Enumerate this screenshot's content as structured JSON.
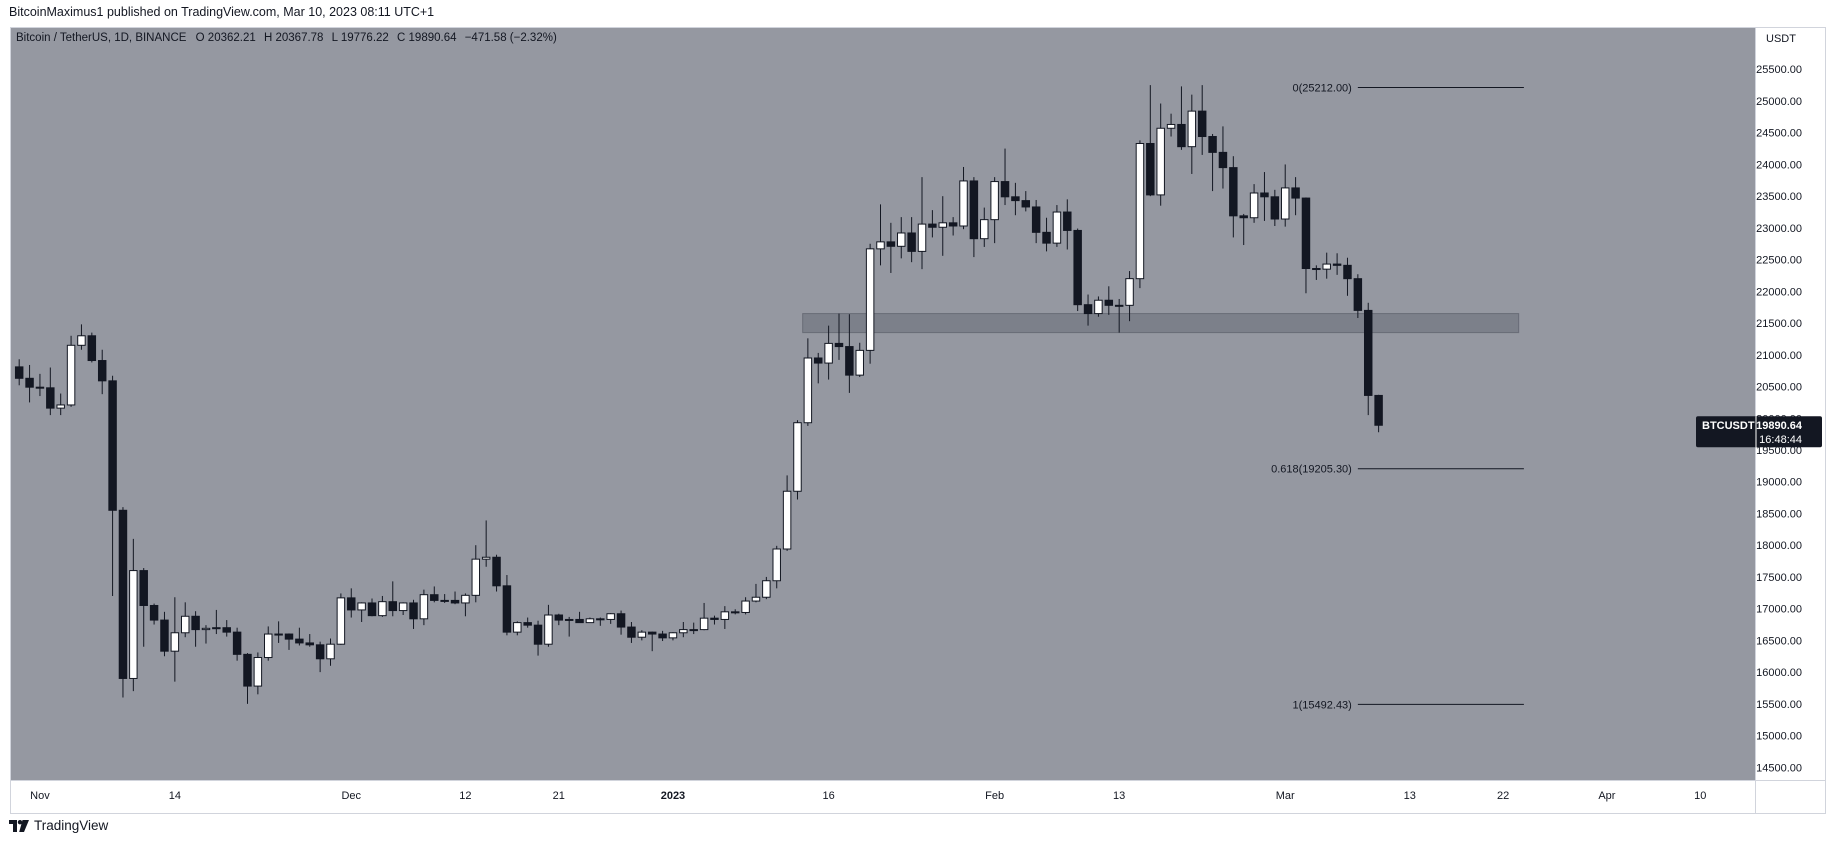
{
  "header": {
    "publisher": "BitcoinMaximus1",
    "published_text": "published on TradingView.com, Mar 10, 2023 08:11 UTC+1"
  },
  "footer": {
    "brand": "TradingView",
    "logo_icon": "tradingview-logo-icon"
  },
  "colors": {
    "plot_bg": "#9598a1",
    "up_body": "#ffffff",
    "down_body": "#131722",
    "wick": "#131722",
    "zone": "#787b86",
    "price_tag_bg": "#131722",
    "price_tag_text": "#ffffff"
  },
  "legend": {
    "symbol": "Bitcoin / TetherUS, 1D, BINANCE",
    "open_label": "O",
    "open": "20362.21",
    "high_label": "H",
    "high": "20367.78",
    "low_label": "L",
    "low": "19776.22",
    "close_label": "C",
    "close": "19890.64",
    "change": "−471.58 (−2.32%)"
  },
  "price_tag": {
    "symbol": "BTCUSDT",
    "price": "19890.64",
    "countdown": "16:48:44"
  },
  "chart_data": {
    "type": "candlestick",
    "symbol": "BTCUSDT",
    "interval": "1D",
    "exchange": "BINANCE",
    "y_axis_unit": "USDT",
    "ylim": [
      14300,
      26150
    ],
    "xlim": [
      "2022-10-30",
      "2023-04-15"
    ],
    "grid": false,
    "y_ticks": [
      "25500.00",
      "25000.00",
      "24500.00",
      "24000.00",
      "23500.00",
      "23000.00",
      "22500.00",
      "22000.00",
      "21500.00",
      "21000.00",
      "20500.00",
      "20000.00",
      "19500.00",
      "19000.00",
      "18500.00",
      "18000.00",
      "17500.00",
      "17000.00",
      "16500.00",
      "16000.00",
      "15500.00",
      "15000.00",
      "14500.00"
    ],
    "x_ticks": [
      {
        "label": "Nov",
        "date": "2022-11-01"
      },
      {
        "label": "14",
        "date": "2022-11-14"
      },
      {
        "label": "Dec",
        "date": "2022-12-01"
      },
      {
        "label": "12",
        "date": "2022-12-12"
      },
      {
        "label": "21",
        "date": "2022-12-21"
      },
      {
        "label": "2023",
        "date": "2023-01-01"
      },
      {
        "label": "16",
        "date": "2023-01-16"
      },
      {
        "label": "Feb",
        "date": "2023-02-01"
      },
      {
        "label": "13",
        "date": "2023-02-13"
      },
      {
        "label": "Mar",
        "date": "2023-03-01"
      },
      {
        "label": "13",
        "date": "2023-03-13"
      },
      {
        "label": "22",
        "date": "2023-03-22"
      },
      {
        "label": "Apr",
        "date": "2023-04-01"
      },
      {
        "label": "10",
        "date": "2023-04-10"
      }
    ],
    "candles": [
      {
        "date": "2022-10-30",
        "o": 20810,
        "h": 20930,
        "l": 20520,
        "c": 20630
      },
      {
        "date": "2022-10-31",
        "o": 20630,
        "h": 20840,
        "l": 20250,
        "c": 20490
      },
      {
        "date": "2022-11-01",
        "o": 20490,
        "h": 20700,
        "l": 20350,
        "c": 20480
      },
      {
        "date": "2022-11-02",
        "o": 20480,
        "h": 20800,
        "l": 20050,
        "c": 20160
      },
      {
        "date": "2022-11-03",
        "o": 20160,
        "h": 20390,
        "l": 20050,
        "c": 20210
      },
      {
        "date": "2022-11-04",
        "o": 20210,
        "h": 21300,
        "l": 20180,
        "c": 21150
      },
      {
        "date": "2022-11-05",
        "o": 21150,
        "h": 21480,
        "l": 21080,
        "c": 21300
      },
      {
        "date": "2022-11-06",
        "o": 21300,
        "h": 21350,
        "l": 20880,
        "c": 20910
      },
      {
        "date": "2022-11-07",
        "o": 20910,
        "h": 21080,
        "l": 20380,
        "c": 20590
      },
      {
        "date": "2022-11-08",
        "o": 20590,
        "h": 20670,
        "l": 17200,
        "c": 18550
      },
      {
        "date": "2022-11-09",
        "o": 18550,
        "h": 18600,
        "l": 15600,
        "c": 15900
      },
      {
        "date": "2022-11-10",
        "o": 15900,
        "h": 18100,
        "l": 15700,
        "c": 17600
      },
      {
        "date": "2022-11-11",
        "o": 17600,
        "h": 17640,
        "l": 16400,
        "c": 17050
      },
      {
        "date": "2022-11-12",
        "o": 17050,
        "h": 17080,
        "l": 16750,
        "c": 16820
      },
      {
        "date": "2022-11-13",
        "o": 16820,
        "h": 16950,
        "l": 16250,
        "c": 16330
      },
      {
        "date": "2022-11-14",
        "o": 16330,
        "h": 17180,
        "l": 15850,
        "c": 16620
      },
      {
        "date": "2022-11-15",
        "o": 16620,
        "h": 17100,
        "l": 16550,
        "c": 16880
      },
      {
        "date": "2022-11-16",
        "o": 16880,
        "h": 16960,
        "l": 16400,
        "c": 16670
      },
      {
        "date": "2022-11-17",
        "o": 16670,
        "h": 16740,
        "l": 16450,
        "c": 16690
      },
      {
        "date": "2022-11-18",
        "o": 16690,
        "h": 16980,
        "l": 16600,
        "c": 16700
      },
      {
        "date": "2022-11-19",
        "o": 16700,
        "h": 16820,
        "l": 16560,
        "c": 16630
      },
      {
        "date": "2022-11-20",
        "o": 16630,
        "h": 16700,
        "l": 16180,
        "c": 16280
      },
      {
        "date": "2022-11-21",
        "o": 16280,
        "h": 16300,
        "l": 15500,
        "c": 15780
      },
      {
        "date": "2022-11-22",
        "o": 15780,
        "h": 16310,
        "l": 15650,
        "c": 16230
      },
      {
        "date": "2022-11-23",
        "o": 16230,
        "h": 16720,
        "l": 16180,
        "c": 16600
      },
      {
        "date": "2022-11-24",
        "o": 16600,
        "h": 16800,
        "l": 16460,
        "c": 16600
      },
      {
        "date": "2022-11-25",
        "o": 16600,
        "h": 16610,
        "l": 16350,
        "c": 16520
      },
      {
        "date": "2022-11-26",
        "o": 16520,
        "h": 16700,
        "l": 16420,
        "c": 16460
      },
      {
        "date": "2022-11-27",
        "o": 16460,
        "h": 16600,
        "l": 16400,
        "c": 16430
      },
      {
        "date": "2022-11-28",
        "o": 16430,
        "h": 16480,
        "l": 16000,
        "c": 16210
      },
      {
        "date": "2022-11-29",
        "o": 16210,
        "h": 16530,
        "l": 16100,
        "c": 16440
      },
      {
        "date": "2022-11-30",
        "o": 16440,
        "h": 17240,
        "l": 16430,
        "c": 17170
      },
      {
        "date": "2022-12-01",
        "o": 17170,
        "h": 17320,
        "l": 16860,
        "c": 16980
      },
      {
        "date": "2022-12-02",
        "o": 16980,
        "h": 17100,
        "l": 16790,
        "c": 17090
      },
      {
        "date": "2022-12-03",
        "o": 17090,
        "h": 17160,
        "l": 16880,
        "c": 16890
      },
      {
        "date": "2022-12-04",
        "o": 16890,
        "h": 17200,
        "l": 16870,
        "c": 17110
      },
      {
        "date": "2022-12-05",
        "o": 17110,
        "h": 17430,
        "l": 16880,
        "c": 16970
      },
      {
        "date": "2022-12-06",
        "o": 16970,
        "h": 17100,
        "l": 16900,
        "c": 17090
      },
      {
        "date": "2022-12-07",
        "o": 17090,
        "h": 17140,
        "l": 16680,
        "c": 16840
      },
      {
        "date": "2022-12-08",
        "o": 16840,
        "h": 17300,
        "l": 16740,
        "c": 17220
      },
      {
        "date": "2022-12-09",
        "o": 17220,
        "h": 17350,
        "l": 17100,
        "c": 17130
      },
      {
        "date": "2022-12-10",
        "o": 17130,
        "h": 17230,
        "l": 17090,
        "c": 17130
      },
      {
        "date": "2022-12-11",
        "o": 17130,
        "h": 17270,
        "l": 17070,
        "c": 17090
      },
      {
        "date": "2022-12-12",
        "o": 17090,
        "h": 17240,
        "l": 16880,
        "c": 17210
      },
      {
        "date": "2022-12-13",
        "o": 17210,
        "h": 18000,
        "l": 17100,
        "c": 17780
      },
      {
        "date": "2022-12-14",
        "o": 17780,
        "h": 18390,
        "l": 17660,
        "c": 17810
      },
      {
        "date": "2022-12-15",
        "o": 17810,
        "h": 17850,
        "l": 17270,
        "c": 17360
      },
      {
        "date": "2022-12-16",
        "o": 17360,
        "h": 17530,
        "l": 16580,
        "c": 16630
      },
      {
        "date": "2022-12-17",
        "o": 16630,
        "h": 16800,
        "l": 16580,
        "c": 16780
      },
      {
        "date": "2022-12-18",
        "o": 16780,
        "h": 16860,
        "l": 16700,
        "c": 16740
      },
      {
        "date": "2022-12-19",
        "o": 16740,
        "h": 16810,
        "l": 16260,
        "c": 16440
      },
      {
        "date": "2022-12-20",
        "o": 16440,
        "h": 17060,
        "l": 16400,
        "c": 16900
      },
      {
        "date": "2022-12-21",
        "o": 16900,
        "h": 16920,
        "l": 16740,
        "c": 16820
      },
      {
        "date": "2022-12-22",
        "o": 16820,
        "h": 16870,
        "l": 16560,
        "c": 16830
      },
      {
        "date": "2022-12-23",
        "o": 16830,
        "h": 16950,
        "l": 16780,
        "c": 16780
      },
      {
        "date": "2022-12-24",
        "o": 16780,
        "h": 16860,
        "l": 16780,
        "c": 16840
      },
      {
        "date": "2022-12-25",
        "o": 16840,
        "h": 16860,
        "l": 16730,
        "c": 16830
      },
      {
        "date": "2022-12-26",
        "o": 16830,
        "h": 16930,
        "l": 16760,
        "c": 16920
      },
      {
        "date": "2022-12-27",
        "o": 16920,
        "h": 16970,
        "l": 16590,
        "c": 16710
      },
      {
        "date": "2022-12-28",
        "o": 16710,
        "h": 16790,
        "l": 16460,
        "c": 16550
      },
      {
        "date": "2022-12-29",
        "o": 16550,
        "h": 16660,
        "l": 16500,
        "c": 16630
      },
      {
        "date": "2022-12-30",
        "o": 16630,
        "h": 16640,
        "l": 16330,
        "c": 16600
      },
      {
        "date": "2022-12-31",
        "o": 16600,
        "h": 16650,
        "l": 16490,
        "c": 16540
      },
      {
        "date": "2023-01-01",
        "o": 16540,
        "h": 16630,
        "l": 16500,
        "c": 16620
      },
      {
        "date": "2023-01-02",
        "o": 16620,
        "h": 16790,
        "l": 16550,
        "c": 16670
      },
      {
        "date": "2023-01-03",
        "o": 16670,
        "h": 16780,
        "l": 16600,
        "c": 16670
      },
      {
        "date": "2023-01-04",
        "o": 16670,
        "h": 17090,
        "l": 16660,
        "c": 16850
      },
      {
        "date": "2023-01-05",
        "o": 16850,
        "h": 16890,
        "l": 16750,
        "c": 16830
      },
      {
        "date": "2023-01-06",
        "o": 16830,
        "h": 17040,
        "l": 16680,
        "c": 16950
      },
      {
        "date": "2023-01-07",
        "o": 16950,
        "h": 16990,
        "l": 16910,
        "c": 16940
      },
      {
        "date": "2023-01-08",
        "o": 16940,
        "h": 17180,
        "l": 16910,
        "c": 17120
      },
      {
        "date": "2023-01-09",
        "o": 17120,
        "h": 17390,
        "l": 17100,
        "c": 17180
      },
      {
        "date": "2023-01-10",
        "o": 17180,
        "h": 17500,
        "l": 17150,
        "c": 17440
      },
      {
        "date": "2023-01-11",
        "o": 17440,
        "h": 17990,
        "l": 17320,
        "c": 17940
      },
      {
        "date": "2023-01-12",
        "o": 17940,
        "h": 19100,
        "l": 17910,
        "c": 18850
      },
      {
        "date": "2023-01-13",
        "o": 18850,
        "h": 19970,
        "l": 18720,
        "c": 19930
      },
      {
        "date": "2023-01-14",
        "o": 19930,
        "h": 21260,
        "l": 19880,
        "c": 20950
      },
      {
        "date": "2023-01-15",
        "o": 20950,
        "h": 21030,
        "l": 20550,
        "c": 20870
      },
      {
        "date": "2023-01-16",
        "o": 20870,
        "h": 21460,
        "l": 20610,
        "c": 21180
      },
      {
        "date": "2023-01-17",
        "o": 21180,
        "h": 21650,
        "l": 20920,
        "c": 21130
      },
      {
        "date": "2023-01-18",
        "o": 21130,
        "h": 21640,
        "l": 20400,
        "c": 20680
      },
      {
        "date": "2023-01-19",
        "o": 20680,
        "h": 21190,
        "l": 20650,
        "c": 21070
      },
      {
        "date": "2023-01-20",
        "o": 21070,
        "h": 22750,
        "l": 20860,
        "c": 22670
      },
      {
        "date": "2023-01-21",
        "o": 22670,
        "h": 23370,
        "l": 22410,
        "c": 22780
      },
      {
        "date": "2023-01-22",
        "o": 22780,
        "h": 23080,
        "l": 22290,
        "c": 22710
      },
      {
        "date": "2023-01-23",
        "o": 22710,
        "h": 23170,
        "l": 22520,
        "c": 22920
      },
      {
        "date": "2023-01-24",
        "o": 22920,
        "h": 23170,
        "l": 22460,
        "c": 22630
      },
      {
        "date": "2023-01-25",
        "o": 22630,
        "h": 23800,
        "l": 22350,
        "c": 23060
      },
      {
        "date": "2023-01-26",
        "o": 23060,
        "h": 23280,
        "l": 22850,
        "c": 23010
      },
      {
        "date": "2023-01-27",
        "o": 23010,
        "h": 23500,
        "l": 22560,
        "c": 23080
      },
      {
        "date": "2023-01-28",
        "o": 23080,
        "h": 23170,
        "l": 22880,
        "c": 23030
      },
      {
        "date": "2023-01-29",
        "o": 23030,
        "h": 23960,
        "l": 22980,
        "c": 23740
      },
      {
        "date": "2023-01-30",
        "o": 23740,
        "h": 23800,
        "l": 22540,
        "c": 22830
      },
      {
        "date": "2023-01-31",
        "o": 22830,
        "h": 23320,
        "l": 22700,
        "c": 23130
      },
      {
        "date": "2023-02-01",
        "o": 23130,
        "h": 23800,
        "l": 22760,
        "c": 23730
      },
      {
        "date": "2023-02-02",
        "o": 23730,
        "h": 24250,
        "l": 23360,
        "c": 23490
      },
      {
        "date": "2023-02-03",
        "o": 23490,
        "h": 23710,
        "l": 23200,
        "c": 23430
      },
      {
        "date": "2023-02-04",
        "o": 23430,
        "h": 23580,
        "l": 23260,
        "c": 23330
      },
      {
        "date": "2023-02-05",
        "o": 23330,
        "h": 23440,
        "l": 22760,
        "c": 22930
      },
      {
        "date": "2023-02-06",
        "o": 22930,
        "h": 23160,
        "l": 22630,
        "c": 22760
      },
      {
        "date": "2023-02-07",
        "o": 22760,
        "h": 23360,
        "l": 22700,
        "c": 23250
      },
      {
        "date": "2023-02-08",
        "o": 23250,
        "h": 23450,
        "l": 22660,
        "c": 22960
      },
      {
        "date": "2023-02-09",
        "o": 22960,
        "h": 22990,
        "l": 21690,
        "c": 21790
      },
      {
        "date": "2023-02-10",
        "o": 21790,
        "h": 21950,
        "l": 21460,
        "c": 21650
      },
      {
        "date": "2023-02-11",
        "o": 21650,
        "h": 21920,
        "l": 21600,
        "c": 21860
      },
      {
        "date": "2023-02-12",
        "o": 21860,
        "h": 22080,
        "l": 21630,
        "c": 21780
      },
      {
        "date": "2023-02-13",
        "o": 21780,
        "h": 21880,
        "l": 21350,
        "c": 21780
      },
      {
        "date": "2023-02-14",
        "o": 21780,
        "h": 22320,
        "l": 21530,
        "c": 22200
      },
      {
        "date": "2023-02-15",
        "o": 22200,
        "h": 24380,
        "l": 22050,
        "c": 24330
      },
      {
        "date": "2023-02-16",
        "o": 24330,
        "h": 25250,
        "l": 23500,
        "c": 23520
      },
      {
        "date": "2023-02-17",
        "o": 23520,
        "h": 24960,
        "l": 23350,
        "c": 24570
      },
      {
        "date": "2023-02-18",
        "o": 24570,
        "h": 24800,
        "l": 24440,
        "c": 24630
      },
      {
        "date": "2023-02-19",
        "o": 24630,
        "h": 25230,
        "l": 24230,
        "c": 24280
      },
      {
        "date": "2023-02-20",
        "o": 24280,
        "h": 25100,
        "l": 23850,
        "c": 24840
      },
      {
        "date": "2023-02-21",
        "o": 24840,
        "h": 25250,
        "l": 24150,
        "c": 24440
      },
      {
        "date": "2023-02-22",
        "o": 24440,
        "h": 24480,
        "l": 23580,
        "c": 24190
      },
      {
        "date": "2023-02-23",
        "o": 24190,
        "h": 24600,
        "l": 23620,
        "c": 23950
      },
      {
        "date": "2023-02-24",
        "o": 23950,
        "h": 24130,
        "l": 22850,
        "c": 23190
      },
      {
        "date": "2023-02-25",
        "o": 23190,
        "h": 23220,
        "l": 22730,
        "c": 23160
      },
      {
        "date": "2023-02-26",
        "o": 23160,
        "h": 23690,
        "l": 23080,
        "c": 23550
      },
      {
        "date": "2023-02-27",
        "o": 23550,
        "h": 23880,
        "l": 23110,
        "c": 23490
      },
      {
        "date": "2023-02-28",
        "o": 23490,
        "h": 23600,
        "l": 23030,
        "c": 23140
      },
      {
        "date": "2023-03-01",
        "o": 23140,
        "h": 24000,
        "l": 23020,
        "c": 23630
      },
      {
        "date": "2023-03-02",
        "o": 23630,
        "h": 23800,
        "l": 23200,
        "c": 23470
      },
      {
        "date": "2023-03-03",
        "o": 23470,
        "h": 23480,
        "l": 21970,
        "c": 22360
      },
      {
        "date": "2023-03-04",
        "o": 22360,
        "h": 22410,
        "l": 22180,
        "c": 22350
      },
      {
        "date": "2023-03-05",
        "o": 22350,
        "h": 22610,
        "l": 22200,
        "c": 22430
      },
      {
        "date": "2023-03-06",
        "o": 22430,
        "h": 22600,
        "l": 22260,
        "c": 22410
      },
      {
        "date": "2023-03-07",
        "o": 22410,
        "h": 22530,
        "l": 21930,
        "c": 22200
      },
      {
        "date": "2023-03-08",
        "o": 22200,
        "h": 22270,
        "l": 21580,
        "c": 21700
      },
      {
        "date": "2023-03-09",
        "o": 21700,
        "h": 21820,
        "l": 20050,
        "c": 20360
      },
      {
        "date": "2023-03-10",
        "o": 20360,
        "h": 20370,
        "l": 19780,
        "c": 19890
      }
    ],
    "zone": {
      "date_from": "2023-01-14",
      "date_to": "2023-03-24",
      "price_from": 21350,
      "price_to": 21650
    },
    "fib_levels": [
      {
        "label": "0(25212.00)",
        "price": 25212.0,
        "date_from": "2023-03-08",
        "date_to": "2023-03-24"
      },
      {
        "label": "0.618(19205.30)",
        "price": 19205.3,
        "date_from": "2023-03-08",
        "date_to": "2023-03-24"
      },
      {
        "label": "1(15492.43)",
        "price": 15492.43,
        "date_from": "2023-03-08",
        "date_to": "2023-03-24"
      }
    ],
    "current_price": 19890.64
  }
}
